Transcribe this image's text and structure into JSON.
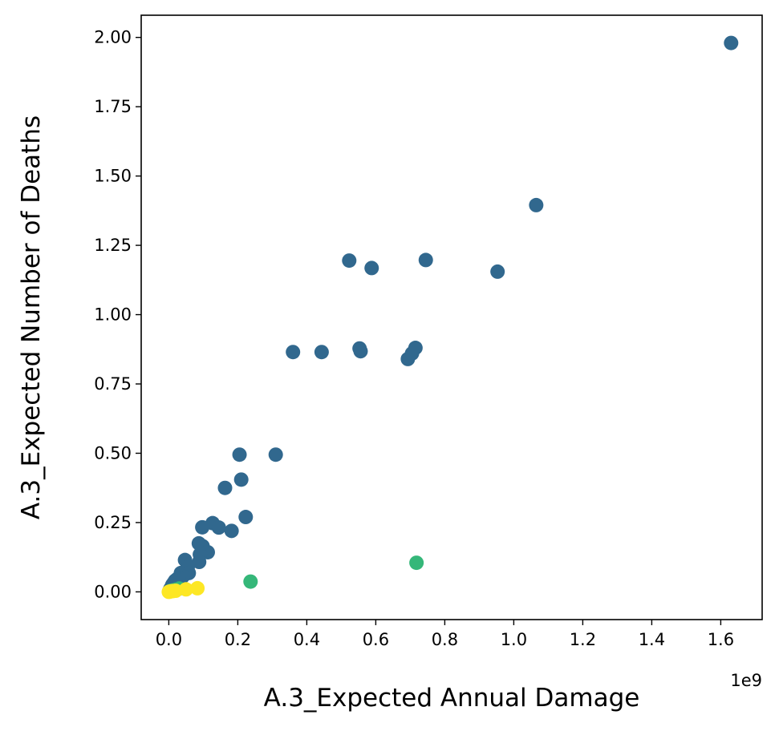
{
  "chart_data": {
    "type": "scatter",
    "xlabel": "A.3_Expected Annual Damage",
    "ylabel": "A.3_Expected Number of Deaths",
    "x_offset_label": "1e9",
    "xlim": [
      -0.08,
      1.72
    ],
    "ylim": [
      -0.1,
      2.08
    ],
    "x_ticks": [
      0.0,
      0.2,
      0.4,
      0.6,
      0.8,
      1.0,
      1.2,
      1.4,
      1.6
    ],
    "x_tick_labels": [
      "0.0",
      "0.2",
      "0.4",
      "0.6",
      "0.8",
      "1.0",
      "1.2",
      "1.4",
      "1.6"
    ],
    "y_ticks": [
      0.0,
      0.25,
      0.5,
      0.75,
      1.0,
      1.25,
      1.5,
      1.75,
      2.0
    ],
    "y_tick_labels": [
      "0.00",
      "0.25",
      "0.50",
      "0.75",
      "1.00",
      "1.25",
      "1.50",
      "1.75",
      "2.00"
    ],
    "grid": false,
    "series": [
      {
        "color": "#31688e",
        "points": [
          [
            1.63,
            1.98
          ],
          [
            1.065,
            1.395
          ],
          [
            0.953,
            1.155
          ],
          [
            0.745,
            1.197
          ],
          [
            0.523,
            1.195
          ],
          [
            0.588,
            1.168
          ],
          [
            0.715,
            0.88
          ],
          [
            0.705,
            0.86
          ],
          [
            0.693,
            0.84
          ],
          [
            0.553,
            0.878
          ],
          [
            0.556,
            0.868
          ],
          [
            0.443,
            0.865
          ],
          [
            0.36,
            0.865
          ],
          [
            0.31,
            0.495
          ],
          [
            0.205,
            0.495
          ],
          [
            0.21,
            0.405
          ],
          [
            0.163,
            0.375
          ],
          [
            0.223,
            0.27
          ],
          [
            0.127,
            0.248
          ],
          [
            0.145,
            0.232
          ],
          [
            0.182,
            0.22
          ],
          [
            0.097,
            0.233
          ],
          [
            0.087,
            0.175
          ],
          [
            0.098,
            0.165
          ],
          [
            0.113,
            0.143
          ],
          [
            0.09,
            0.135
          ],
          [
            0.088,
            0.108
          ],
          [
            0.047,
            0.115
          ],
          [
            0.055,
            0.09
          ],
          [
            0.058,
            0.068
          ],
          [
            0.035,
            0.068
          ],
          [
            0.04,
            0.055
          ],
          [
            0.028,
            0.05
          ],
          [
            0.023,
            0.045
          ],
          [
            0.018,
            0.04
          ],
          [
            0.014,
            0.032
          ],
          [
            0.01,
            0.025
          ],
          [
            0.008,
            0.018
          ],
          [
            0.005,
            0.012
          ],
          [
            0.003,
            0.007
          ]
        ]
      },
      {
        "color": "#35b779",
        "points": [
          [
            0.718,
            0.105
          ],
          [
            0.237,
            0.037
          ],
          [
            0.03,
            0.012
          ],
          [
            0.02,
            0.008
          ],
          [
            0.012,
            0.005
          ],
          [
            0.006,
            0.004
          ]
        ]
      },
      {
        "color": "#fde725",
        "points": [
          [
            0.083,
            0.013
          ],
          [
            0.05,
            0.009
          ],
          [
            0.02,
            0.004
          ],
          [
            0.012,
            0.003
          ],
          [
            0.007,
            0.002
          ],
          [
            0.003,
            0.001
          ],
          [
            0.0,
            0.0
          ]
        ]
      }
    ]
  }
}
